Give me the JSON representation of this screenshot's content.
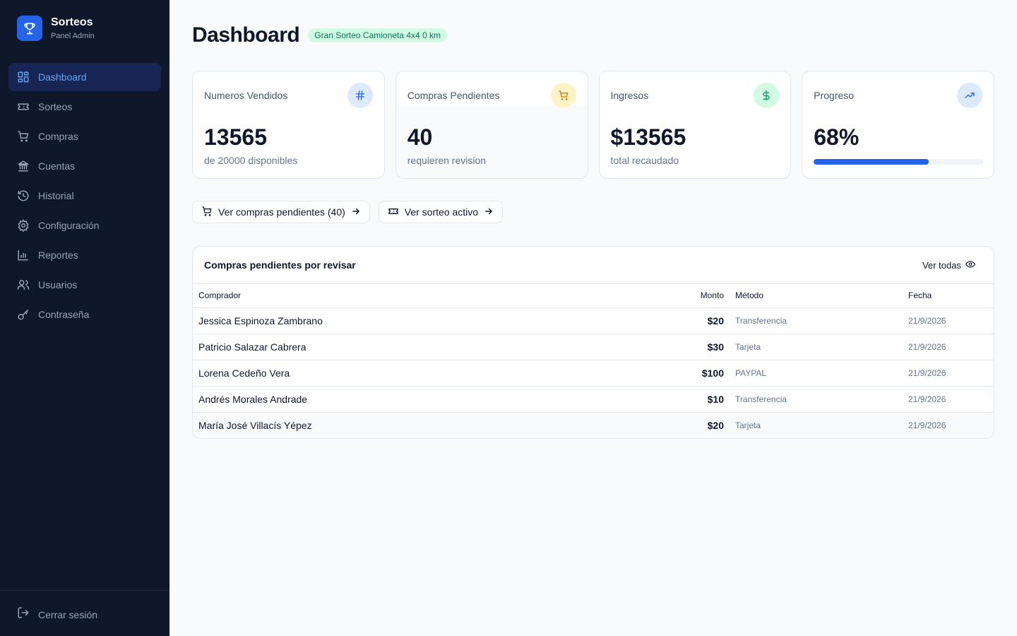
{
  "sidebar": {
    "brand_title": "Sorteos",
    "brand_subtitle": "Panel Admin",
    "items": [
      {
        "label": "Dashboard",
        "icon": "dashboard-icon",
        "active": true
      },
      {
        "label": "Sorteos",
        "icon": "ticket-icon"
      },
      {
        "label": "Compras",
        "icon": "cart-icon"
      },
      {
        "label": "Cuentas",
        "icon": "bank-icon"
      },
      {
        "label": "Historial",
        "icon": "history-icon"
      },
      {
        "label": "Configuración",
        "icon": "gear-icon"
      },
      {
        "label": "Reportes",
        "icon": "bar-chart-icon"
      },
      {
        "label": "Usuarios",
        "icon": "users-icon"
      },
      {
        "label": "Contraseña",
        "icon": "key-icon"
      }
    ],
    "logout_label": "Cerrar sesión"
  },
  "header": {
    "title": "Dashboard",
    "badge": "Gran Sorteo Camioneta 4x4 0 km"
  },
  "stats": [
    {
      "label": "Numeros Vendidos",
      "value": "13565",
      "sub": "de 20000 disponibles",
      "icon": "hash-icon"
    },
    {
      "label": "Compras Pendientes",
      "value": "40",
      "sub": "requieren revision",
      "icon": "cart-icon"
    },
    {
      "label": "Ingresos",
      "value": "$13565",
      "sub": "total recaudado",
      "icon": "dollar-icon"
    },
    {
      "label": "Progreso",
      "value": "68%",
      "progress": 0.68,
      "icon": "trending-up-icon"
    }
  ],
  "actions": {
    "pending_label": "Ver compras pendientes (40)",
    "raffle_label": "Ver sorteo activo"
  },
  "pending_table": {
    "title": "Compras pendientes por revisar",
    "view_all_label": "Ver todas",
    "columns": [
      "Comprador",
      "Monto",
      "Método",
      "Fecha"
    ],
    "rows": [
      {
        "buyer": "Jessica Espinoza Zambrano",
        "amount": "$20",
        "method": "Transferencia",
        "date": "21/9/2026"
      },
      {
        "buyer": "Patricio Salazar Cabrera",
        "amount": "$30",
        "method": "Tarjeta",
        "date": "21/9/2026"
      },
      {
        "buyer": "Lorena Cedeño Vera",
        "amount": "$100",
        "method": "PAYPAL",
        "date": "21/9/2026"
      },
      {
        "buyer": "Andrés Morales Andrade",
        "amount": "$10",
        "method": "Transferencia",
        "date": "21/9/2026"
      },
      {
        "buyer": "María José Villacís Yépez",
        "amount": "$20",
        "method": "Tarjeta",
        "date": "21/9/2026"
      }
    ]
  },
  "colors": {
    "sidebar_bg": "#0f172a",
    "accent": "#2563eb",
    "active_nav_bg": "#172554",
    "active_nav_text": "#60a5fa",
    "badge_bg": "#d1fae5",
    "badge_text": "#047857"
  }
}
